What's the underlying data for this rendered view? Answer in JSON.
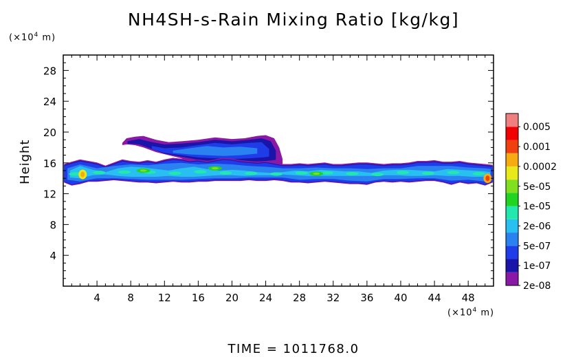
{
  "chart_data": {
    "type": "heatmap",
    "title": "NH4SH-s-Rain Mixing Ratio [kg/kg]",
    "ylabel": "Height",
    "x_unit_base": "(×10",
    "x_unit_exp": "4",
    "x_unit_tail": " m)",
    "y_unit_base": "(×10",
    "y_unit_exp": "4",
    "y_unit_tail": " m)",
    "xlim": [
      0,
      51
    ],
    "ylim": [
      0,
      30
    ],
    "x_ticks": [
      4,
      8,
      12,
      16,
      20,
      24,
      28,
      32,
      36,
      40,
      44,
      48
    ],
    "y_ticks": [
      4,
      8,
      12,
      16,
      20,
      24,
      28
    ],
    "colorbar": {
      "labels": [
        "0.005",
        "0.001",
        "0.0002",
        "5e-05",
        "1e-05",
        "2e-06",
        "5e-07",
        "1e-07",
        "2e-08"
      ],
      "colors_bottom_to_top": [
        "#8a1aa6",
        "#1a14a8",
        "#1e3ce8",
        "#2a82f0",
        "#28c0f0",
        "#22e8b0",
        "#22d422",
        "#80e020",
        "#e8e81a",
        "#f6ac10",
        "#f04010",
        "#f00000",
        "#f08080"
      ]
    },
    "regions": [
      {
        "level": 2,
        "x": [
          0.1,
          1.0,
          2.0,
          3.0,
          4.0,
          5.0,
          6.0,
          7.0,
          8.0,
          9.0,
          10.0,
          11.0,
          12.0,
          13.0,
          14.0,
          15.0,
          16.0,
          17.0,
          18.0,
          19.0,
          20.0,
          21.0,
          22.0,
          23.0,
          24.0,
          25.0,
          26.0,
          27.0,
          28.0,
          29.0,
          30.0,
          31.0,
          32.0,
          33.0,
          34.0,
          35.0,
          36.0,
          37.0,
          38.0,
          39.0,
          40.0,
          41.0,
          42.0,
          43.0,
          44.0,
          45.0,
          46.0,
          47.0,
          48.0,
          49.0,
          50.0,
          50.9
        ],
        "ytop": [
          15.6,
          15.9,
          16.2,
          16.0,
          15.8,
          15.4,
          15.8,
          16.2,
          16.0,
          15.9,
          16.1,
          15.9,
          16.2,
          16.4,
          16.3,
          16.1,
          16.2,
          16.0,
          16.2,
          16.4,
          16.3,
          16.1,
          16.0,
          15.9,
          16.0,
          15.8,
          15.6,
          15.6,
          15.7,
          15.6,
          15.7,
          15.8,
          15.6,
          15.6,
          15.7,
          15.8,
          15.8,
          15.7,
          15.6,
          15.7,
          15.7,
          15.8,
          16.0,
          16.0,
          16.1,
          15.9,
          15.9,
          16.0,
          15.8,
          15.7,
          15.6,
          15.5
        ],
        "ybot": [
          13.6,
          13.2,
          13.4,
          13.7,
          13.7,
          13.8,
          13.9,
          13.8,
          13.7,
          13.6,
          13.6,
          13.5,
          13.6,
          13.7,
          13.6,
          13.6,
          13.7,
          13.7,
          13.8,
          13.8,
          13.8,
          13.8,
          13.9,
          13.8,
          13.8,
          13.9,
          13.8,
          13.6,
          13.6,
          13.5,
          13.6,
          13.7,
          13.6,
          13.5,
          13.4,
          13.4,
          13.3,
          13.6,
          13.7,
          13.6,
          13.7,
          13.6,
          13.7,
          13.8,
          13.8,
          13.6,
          13.3,
          13.6,
          13.4,
          13.5,
          13.2,
          13.6
        ]
      },
      {
        "level": 3,
        "x": [
          0.5,
          2.0,
          4.0,
          6.0,
          8.0,
          10.0,
          12.0,
          14.0,
          16.0,
          18.0,
          20.0,
          22.0,
          24.0,
          26.0,
          28.0,
          30.0,
          32.0,
          34.0,
          36.0,
          38.0,
          40.0,
          42.0,
          44.0,
          46.0,
          48.0,
          50.0,
          50.7
        ],
        "ytop": [
          15.3,
          15.8,
          15.3,
          15.6,
          15.8,
          15.7,
          15.9,
          16.0,
          15.8,
          15.9,
          15.8,
          15.6,
          15.5,
          15.3,
          15.3,
          15.4,
          15.3,
          15.3,
          15.2,
          15.3,
          15.3,
          15.6,
          15.6,
          15.6,
          15.4,
          15.3,
          15.2
        ],
        "ybot": [
          13.8,
          13.6,
          14.0,
          14.0,
          13.9,
          13.8,
          13.8,
          13.8,
          13.9,
          14.0,
          14.0,
          14.1,
          14.1,
          14.1,
          13.8,
          13.9,
          13.9,
          13.7,
          13.6,
          13.9,
          13.9,
          14.0,
          14.0,
          13.7,
          13.8,
          13.6,
          13.8
        ]
      },
      {
        "level": 4,
        "x": [
          0.8,
          2.0,
          3.5,
          5.0,
          6.5,
          8.0,
          9.5,
          11.0,
          12.5,
          14.0,
          15.5,
          17.0,
          18.5,
          20.0,
          21.5,
          23.0,
          24.5,
          26.0,
          27.5,
          29.0,
          30.5,
          32.0,
          33.5,
          35.0,
          36.5,
          38.0,
          39.5,
          41.0,
          42.5,
          44.0,
          45.5,
          47.0,
          48.5,
          50.0,
          50.6
        ],
        "ytop": [
          15.0,
          15.6,
          15.1,
          14.8,
          15.3,
          15.5,
          15.4,
          15.2,
          15.0,
          15.3,
          15.5,
          15.2,
          15.0,
          15.1,
          15.0,
          14.8,
          14.7,
          14.8,
          15.0,
          14.9,
          15.1,
          15.0,
          14.9,
          14.9,
          14.7,
          15.0,
          15.1,
          15.1,
          15.0,
          14.9,
          15.2,
          15.1,
          15.0,
          14.9,
          14.8
        ],
        "ybot": [
          14.1,
          14.0,
          14.4,
          14.5,
          14.3,
          14.2,
          14.2,
          14.2,
          14.3,
          14.2,
          14.2,
          14.3,
          14.4,
          14.4,
          14.3,
          14.4,
          14.4,
          14.5,
          14.4,
          14.3,
          14.3,
          14.3,
          14.3,
          14.3,
          14.3,
          14.4,
          14.4,
          14.3,
          14.3,
          14.4,
          14.3,
          14.3,
          14.2,
          14.2,
          14.3
        ]
      }
    ],
    "upper_layer": {
      "x_range": [
        7.0,
        26.0
      ],
      "ytop_max": 19.6,
      "ybot": 15.5
    },
    "hotspots": [
      {
        "x": 2.3,
        "y": 14.5,
        "level": 9
      },
      {
        "x": 50.3,
        "y": 14.0,
        "level": 10
      },
      {
        "x": 9.5,
        "y": 15.0,
        "level": 7
      },
      {
        "x": 18.0,
        "y": 15.3,
        "level": 7
      },
      {
        "x": 30.0,
        "y": 14.6,
        "level": 7
      }
    ]
  },
  "footer": {
    "time_label": "TIME  =  1011768.0"
  }
}
